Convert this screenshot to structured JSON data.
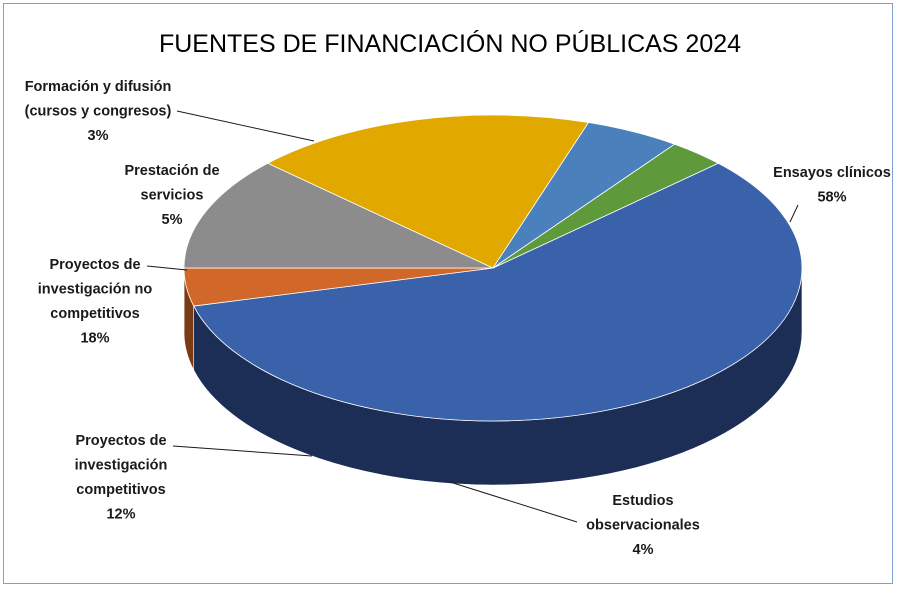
{
  "chart_data": {
    "type": "pie",
    "title": "FUENTES DE FINANCIACIÓN NO PÚBLICAS 2024",
    "style": "3d",
    "slices": [
      {
        "name": "Ensayos clínicos",
        "label_lines": [
          "Ensayos clínicos",
          "58%"
        ],
        "value": 58,
        "color": "#3a62ab",
        "side": "#1c2e55"
      },
      {
        "name": "Estudios observacionales",
        "label_lines": [
          "Estudios",
          "observacionales",
          "4%"
        ],
        "value": 4,
        "color": "#d2672a",
        "side": "#7a3a14"
      },
      {
        "name": "Proyectos de investigación competitivos",
        "label_lines": [
          "Proyectos de",
          "investigación",
          "competitivos",
          "12%"
        ],
        "value": 12,
        "color": "#8c8c8c",
        "side": "#5e5e5e"
      },
      {
        "name": "Proyectos de investigación no competitivos",
        "label_lines": [
          "Proyectos de",
          "investigación  no",
          "competitivos",
          "18%"
        ],
        "value": 18,
        "color": "#e1a800",
        "side": "#a87c00"
      },
      {
        "name": "Prestación de servicios",
        "label_lines": [
          "Prestación  de",
          "servicios",
          "5%"
        ],
        "value": 5,
        "color": "#4a80bb",
        "side": "#2d5382"
      },
      {
        "name": "Formación y difusión (cursos y congresos)",
        "label_lines": [
          "Formación  y  difusión",
          "(cursos y congresos)",
          "3%"
        ],
        "value": 3,
        "color": "#5e9a3c",
        "side": "#3a6425"
      }
    ]
  }
}
